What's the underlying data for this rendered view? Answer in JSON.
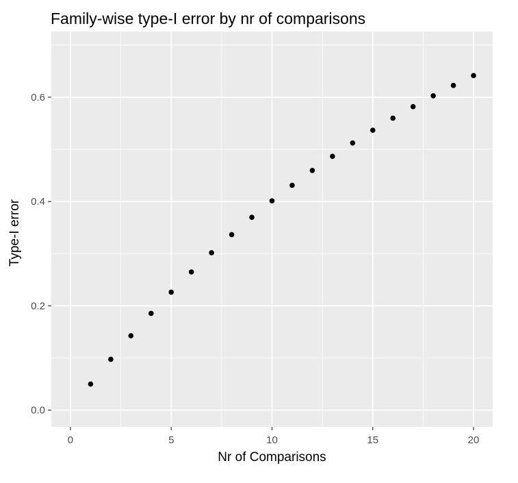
{
  "colors": {
    "panel_background": "#ebebeb",
    "grid_major": "#ffffff",
    "point": "#000000",
    "tick_text": "#4d4d4d",
    "tick_mark": "#333333"
  },
  "chart_data": {
    "type": "scatter",
    "title": "Family-wise type-I error by nr of comparisons",
    "xlabel": "Nr of Comparisons",
    "ylabel": "Type-I error",
    "xlim": [
      -0.95,
      20.95
    ],
    "ylim": [
      -0.032,
      0.726
    ],
    "xticks": [
      0,
      5,
      10,
      15,
      20
    ],
    "xtick_labels": [
      "0",
      "5",
      "10",
      "15",
      "20"
    ],
    "yticks": [
      0.0,
      0.2,
      0.4,
      0.6
    ],
    "ytick_labels": [
      "0.0",
      "0.2",
      "0.4",
      "0.6"
    ],
    "grid": true,
    "legend": "none",
    "series": [
      {
        "x": [
          1,
          2,
          3,
          4,
          5,
          6,
          7,
          8,
          9,
          10,
          11,
          12,
          13,
          14,
          15,
          16,
          17,
          18,
          19,
          20
        ],
        "y": [
          0.05,
          0.0975,
          0.1426,
          0.1855,
          0.2262,
          0.2649,
          0.3017,
          0.3366,
          0.3698,
          0.4013,
          0.4312,
          0.4596,
          0.4867,
          0.5123,
          0.5367,
          0.5599,
          0.5819,
          0.6028,
          0.6226,
          0.6415
        ]
      }
    ]
  }
}
